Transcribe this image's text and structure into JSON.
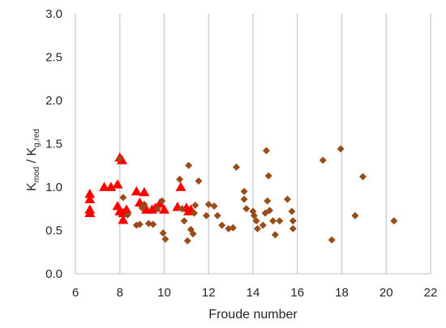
{
  "chart_data": {
    "type": "scatter",
    "xlabel": "Froude number",
    "ylabel": {
      "main": "K",
      "sub1": "mod",
      "sep": " / K",
      "sub2": "g,red"
    },
    "xlim": [
      6,
      22
    ],
    "ylim": [
      0,
      3
    ],
    "xticks": [
      "6",
      "8",
      "10",
      "12",
      "14",
      "16",
      "18",
      "20",
      "22"
    ],
    "yticks": [
      "0.0",
      "0.5",
      "1.0",
      "1.5",
      "2.0",
      "2.5",
      "3.0"
    ],
    "grid": {
      "vertical": true,
      "horizontal": false
    },
    "legend": "none",
    "series": [
      {
        "marker": "triangle",
        "color": "#ff0000",
        "points": [
          [
            6.65,
            0.92
          ],
          [
            6.65,
            0.86
          ],
          [
            6.65,
            0.74
          ],
          [
            6.65,
            0.7
          ],
          [
            7.3,
            1.0
          ],
          [
            7.6,
            1.0
          ],
          [
            7.9,
            1.03
          ],
          [
            7.9,
            0.78
          ],
          [
            8.0,
            1.34
          ],
          [
            8.1,
            1.31
          ],
          [
            8.0,
            0.72
          ],
          [
            8.15,
            0.62
          ],
          [
            8.15,
            0.7
          ],
          [
            8.3,
            0.74
          ],
          [
            8.75,
            0.95
          ],
          [
            8.9,
            0.82
          ],
          [
            9.1,
            0.94
          ],
          [
            9.2,
            0.74
          ],
          [
            9.45,
            0.74
          ],
          [
            9.6,
            0.76
          ],
          [
            9.8,
            0.81
          ],
          [
            10.0,
            0.74
          ],
          [
            10.6,
            0.77
          ],
          [
            10.75,
            1.0
          ],
          [
            11.0,
            0.76
          ],
          [
            11.1,
            0.72
          ],
          [
            11.2,
            0.74
          ]
        ]
      },
      {
        "marker": "diamond",
        "color": "#994c1a",
        "points": [
          [
            8.0,
            1.33
          ],
          [
            8.15,
            0.88
          ],
          [
            8.35,
            0.68
          ],
          [
            8.75,
            0.56
          ],
          [
            8.9,
            0.57
          ],
          [
            9.0,
            0.76
          ],
          [
            9.1,
            0.8
          ],
          [
            9.3,
            0.58
          ],
          [
            9.5,
            0.57
          ],
          [
            9.7,
            0.75
          ],
          [
            9.9,
            0.84
          ],
          [
            9.95,
            0.47
          ],
          [
            10.05,
            0.4
          ],
          [
            10.7,
            1.09
          ],
          [
            10.8,
            0.75
          ],
          [
            10.9,
            0.61
          ],
          [
            11.1,
            1.25
          ],
          [
            11.05,
            0.38
          ],
          [
            11.2,
            0.51
          ],
          [
            11.3,
            0.46
          ],
          [
            11.35,
            0.7
          ],
          [
            11.4,
            0.79
          ],
          [
            11.55,
            1.07
          ],
          [
            11.9,
            0.67
          ],
          [
            12.0,
            0.8
          ],
          [
            12.25,
            0.78
          ],
          [
            12.4,
            0.67
          ],
          [
            12.6,
            0.56
          ],
          [
            12.9,
            0.52
          ],
          [
            13.1,
            0.53
          ],
          [
            13.25,
            1.23
          ],
          [
            13.6,
            0.95
          ],
          [
            13.6,
            0.86
          ],
          [
            13.7,
            0.75
          ],
          [
            14.0,
            0.72
          ],
          [
            14.05,
            0.67
          ],
          [
            14.15,
            0.61
          ],
          [
            14.2,
            0.52
          ],
          [
            14.45,
            0.56
          ],
          [
            14.55,
            0.7
          ],
          [
            14.6,
            1.42
          ],
          [
            14.65,
            0.84
          ],
          [
            14.7,
            1.13
          ],
          [
            14.75,
            0.73
          ],
          [
            14.9,
            0.61
          ],
          [
            15.0,
            0.45
          ],
          [
            15.2,
            0.61
          ],
          [
            15.55,
            0.86
          ],
          [
            15.75,
            0.72
          ],
          [
            15.8,
            0.61
          ],
          [
            15.8,
            0.52
          ],
          [
            17.15,
            1.31
          ],
          [
            17.55,
            0.39
          ],
          [
            17.95,
            1.44
          ],
          [
            18.6,
            0.67
          ],
          [
            18.95,
            1.12
          ],
          [
            20.35,
            0.61
          ]
        ]
      }
    ]
  }
}
